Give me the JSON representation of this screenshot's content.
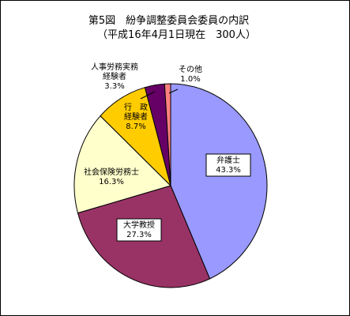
{
  "chart_data": {
    "type": "pie",
    "title": "第5図　紛争調整委員会委員の内訳",
    "subtitle": "（平成16年4月1日現在　300人）",
    "slices": [
      {
        "label": "弁護士",
        "pct_text": "43.3%",
        "value": 43.3,
        "color": "#9999ff"
      },
      {
        "label": "大学教授",
        "pct_text": "27.3%",
        "value": 27.3,
        "color": "#993366"
      },
      {
        "label": "社会保険労務士",
        "pct_text": "16.3%",
        "value": 16.3,
        "color": "#ffffcc"
      },
      {
        "label": "行　政\n経験者",
        "pct_text": "8.7%",
        "value": 8.7,
        "color": "#ffcc00"
      },
      {
        "label": "人事労務実務\n経験者",
        "pct_text": "3.3%",
        "value": 3.3,
        "color": "#660066"
      },
      {
        "label": "その他",
        "pct_text": "1.0%",
        "value": 1.0,
        "color": "#ff8080"
      }
    ]
  }
}
